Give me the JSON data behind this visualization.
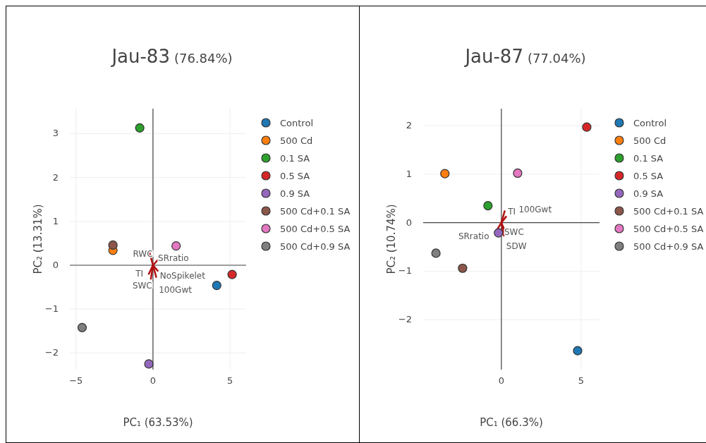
{
  "chart_data": [
    {
      "type": "scatter",
      "title": "Jau-83",
      "subtitle": "(76.84%)",
      "xlabel": "PC₁ (63.53%)",
      "ylabel": "PC₂ (13.31%)",
      "xlim": [
        -5.4,
        6.05
      ],
      "ylim": [
        -2.38,
        3.57
      ],
      "xticks": [
        -5,
        0,
        5
      ],
      "yticks": [
        -2,
        -1,
        0,
        1,
        2,
        3
      ],
      "grid": true,
      "legend": "right",
      "marker": "circle",
      "annotations": [
        "RWC",
        "TI",
        "NoSpikelet",
        "SRratio",
        "SWC",
        "100Gwt"
      ],
      "series": [
        {
          "name": "Control",
          "color": "#1f77b4",
          "x": [
            4.14
          ],
          "values": [
            -0.46
          ]
        },
        {
          "name": "500 Cd",
          "color": "#ff7f0e",
          "x": [
            -2.6
          ],
          "values": [
            0.34
          ]
        },
        {
          "name": "0.1 SA",
          "color": "#2ca02c",
          "x": [
            -0.86
          ],
          "values": [
            3.13
          ]
        },
        {
          "name": "0.5 SA",
          "color": "#d62728",
          "x": [
            5.14
          ],
          "values": [
            -0.21
          ]
        },
        {
          "name": "0.9 SA",
          "color": "#9467bd",
          "x": [
            -0.27
          ],
          "values": [
            -2.25
          ]
        },
        {
          "name": "500 Cd+0.1 SA",
          "color": "#8c564b",
          "x": [
            -2.6
          ],
          "values": [
            0.46
          ]
        },
        {
          "name": "500 Cd+0.5 SA",
          "color": "#e377c2",
          "x": [
            1.5
          ],
          "values": [
            0.44
          ]
        },
        {
          "name": "500 Cd+0.9 SA",
          "color": "#7f7f7f",
          "x": [
            -4.6
          ],
          "values": [
            -1.42
          ]
        }
      ]
    },
    {
      "type": "scatter",
      "title": "Jau-87",
      "subtitle": "(77.04%)",
      "xlabel": "PC₁ (66.3%)",
      "ylabel": "PC₂ (10.74%)",
      "xlim": [
        -4.9,
        6.15
      ],
      "ylim": [
        -3.03,
        2.35
      ],
      "xticks": [
        0,
        5
      ],
      "yticks": [
        -2,
        -1,
        0,
        1,
        2
      ],
      "grid": true,
      "legend": "right",
      "marker": "circle",
      "annotations": [
        "TI",
        "SWC",
        "SRratio",
        "SDW",
        "100Gwt"
      ],
      "series": [
        {
          "name": "Control",
          "color": "#1f77b4",
          "x": [
            4.78
          ],
          "values": [
            -2.64
          ]
        },
        {
          "name": "500 Cd",
          "color": "#ff7f0e",
          "x": [
            -3.54
          ],
          "values": [
            1.01
          ]
        },
        {
          "name": "0.1 SA",
          "color": "#2ca02c",
          "x": [
            -0.84
          ],
          "values": [
            0.35
          ]
        },
        {
          "name": "0.5 SA",
          "color": "#d62728",
          "x": [
            5.35
          ],
          "values": [
            1.97
          ]
        },
        {
          "name": "0.9 SA",
          "color": "#9467bd",
          "x": [
            -0.18
          ],
          "values": [
            -0.21
          ]
        },
        {
          "name": "500 Cd+0.1 SA",
          "color": "#8c564b",
          "x": [
            -2.43
          ],
          "values": [
            -0.94
          ]
        },
        {
          "name": "500 Cd+0.5 SA",
          "color": "#e377c2",
          "x": [
            1.02
          ],
          "values": [
            1.02
          ]
        },
        {
          "name": "500 Cd+0.9 SA",
          "color": "#7f7f7f",
          "x": [
            -4.1
          ],
          "values": [
            -0.63
          ]
        }
      ]
    }
  ]
}
